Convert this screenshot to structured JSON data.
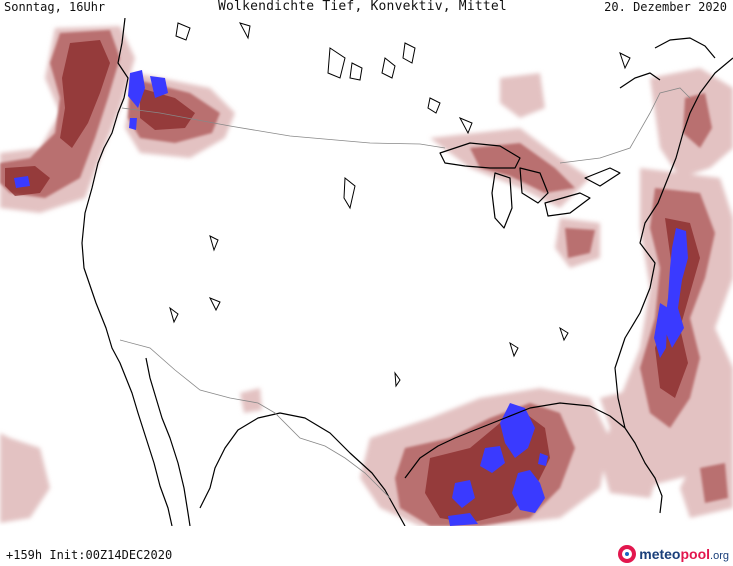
{
  "header": {
    "valid_time": "Sonntag, 16Uhr",
    "title": "Wolkendichte  Tief, Konvektiv, Mittel",
    "valid_date": "20. Dezember 2020"
  },
  "footer": {
    "forecast_info": "+159h Init:00Z14DEC2020",
    "logo_meteo": "meteo",
    "logo_pool": "pool",
    "logo_tld": ".org"
  },
  "legend_colors": {
    "cloud_light": "#e3c2c2",
    "cloud_medium": "#b9706f",
    "cloud_dense": "#8a2a2a",
    "convective": "#3a3aff"
  },
  "map_lines": {
    "coastline": "#000000",
    "border": "#888888"
  }
}
